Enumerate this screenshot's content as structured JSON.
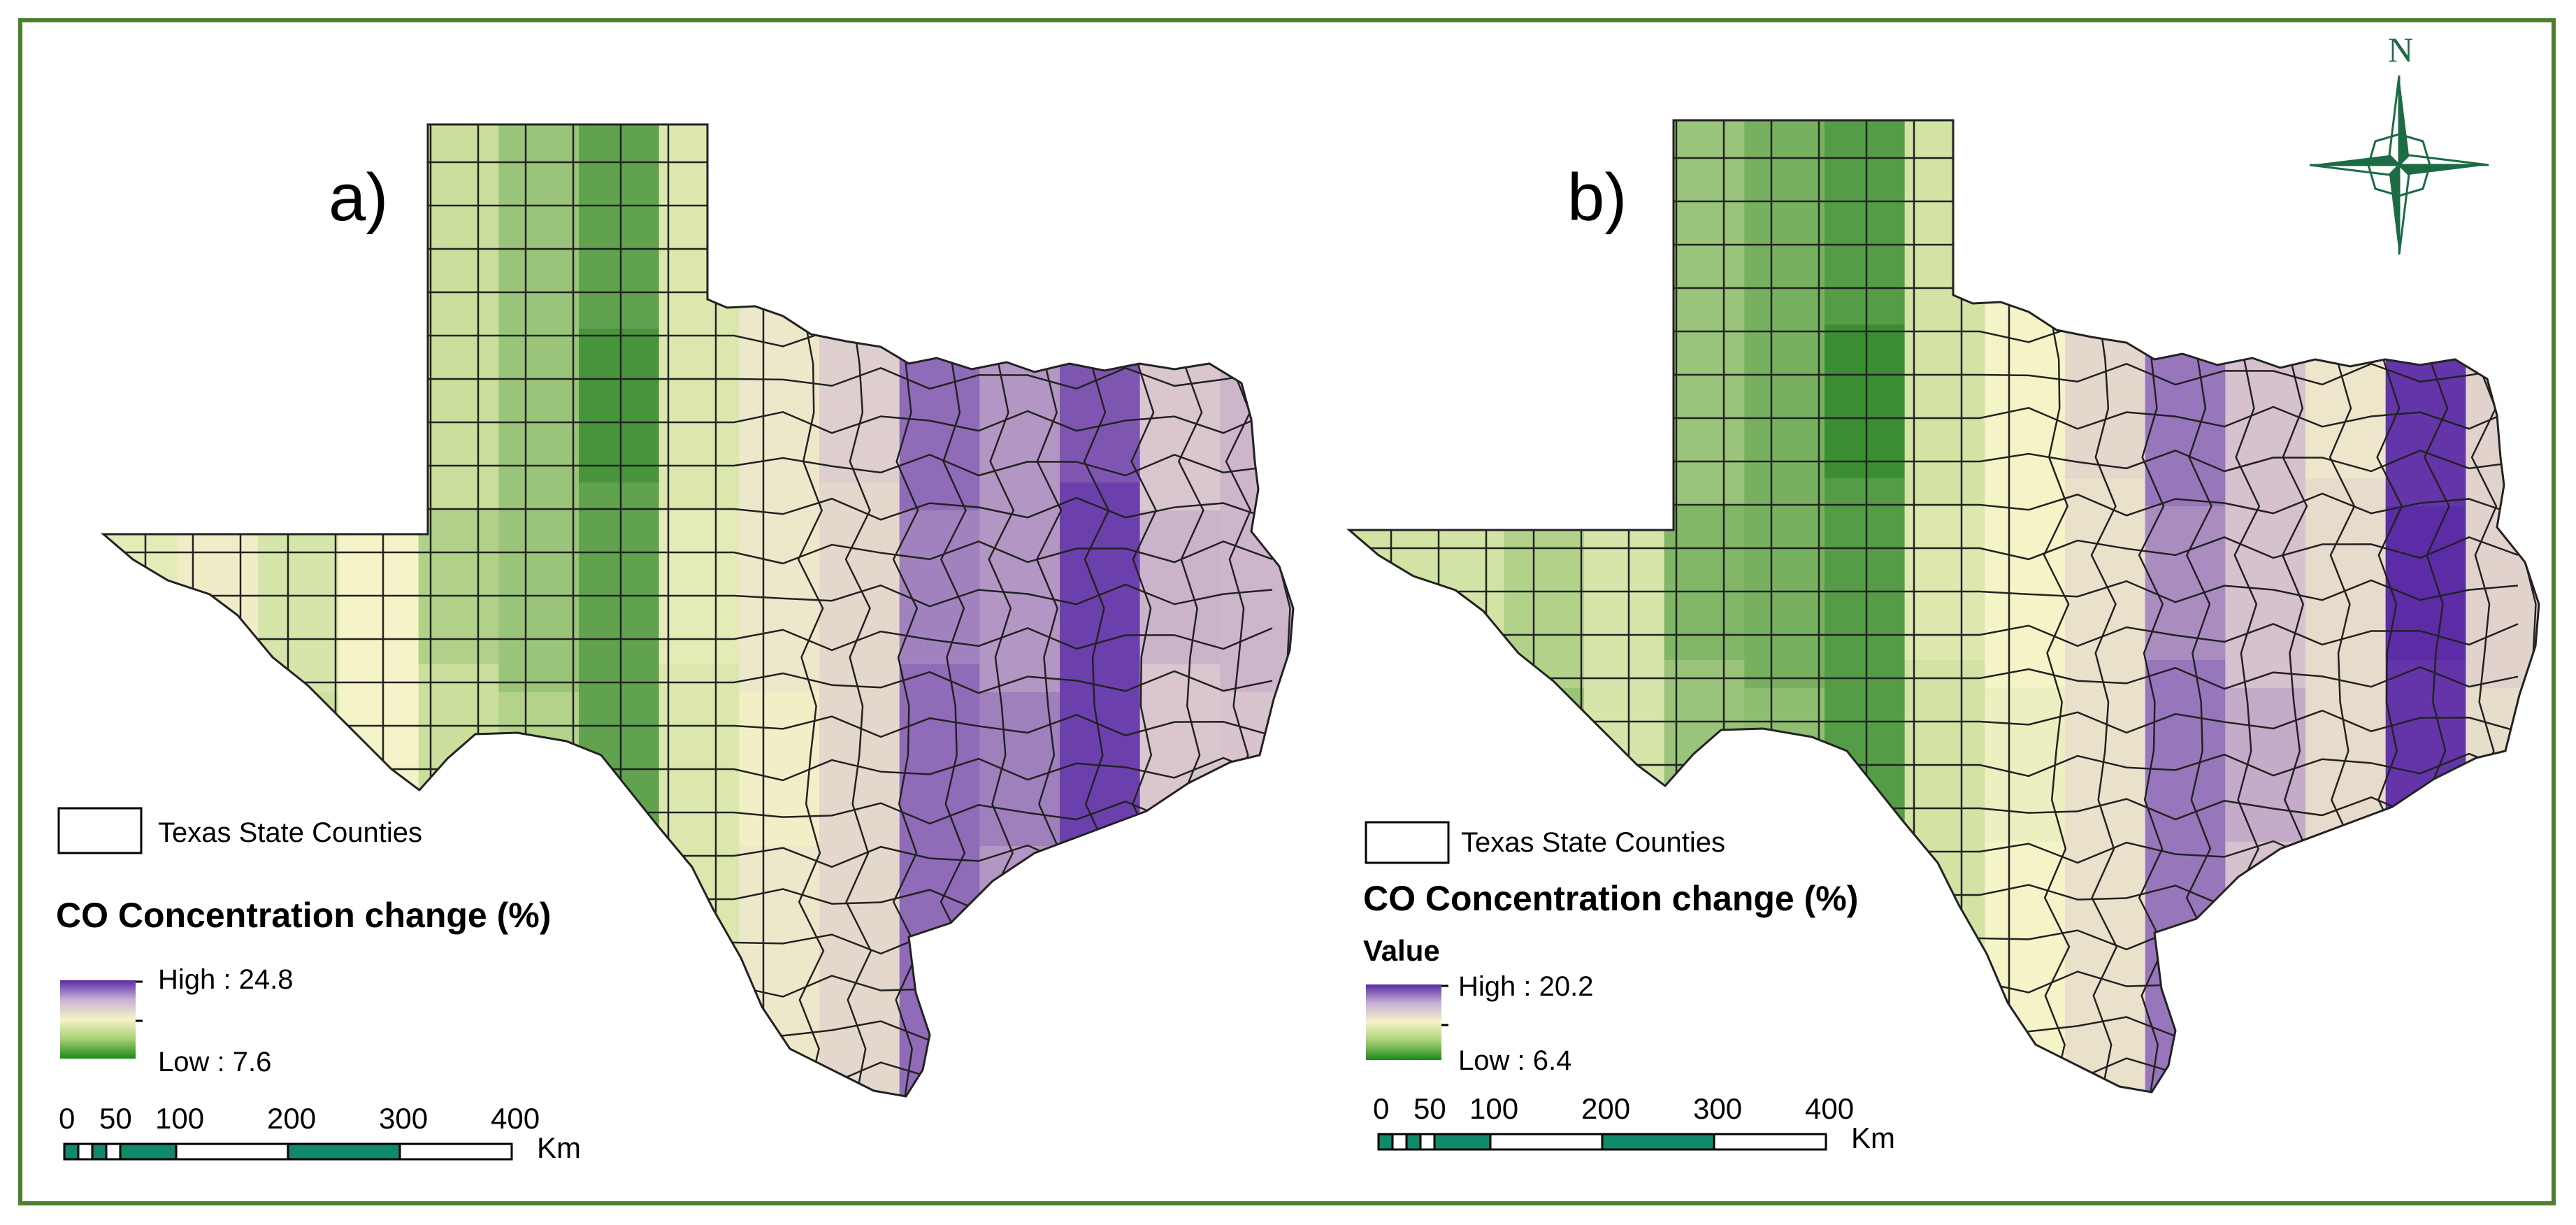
{
  "figure": {
    "panels": [
      {
        "label": "a)",
        "legend": {
          "boundary_label": "Texas State Counties",
          "title": "CO Concentration change (%)",
          "value_header": "",
          "high_label": "High : 24.8",
          "low_label": "Low : 7.6",
          "high_value": 24.8,
          "low_value": 7.6
        },
        "scale": {
          "ticks": [
            "0",
            "50",
            "100",
            "200",
            "300",
            "400"
          ],
          "unit": "Km"
        },
        "bands": [
          0.42,
          0.48,
          0.36,
          0.5,
          0.3,
          0.22,
          0.12,
          0.38,
          0.55,
          0.62,
          0.88,
          0.8,
          0.96,
          0.7,
          0.74
        ]
      },
      {
        "label": "b)",
        "legend": {
          "boundary_label": "Texas State Counties",
          "title": "CO Concentration change (%)",
          "value_header": "Value",
          "high_label": "High : 20.2",
          "low_label": "Low : 6.4",
          "high_value": 20.2,
          "low_value": 6.4
        },
        "scale": {
          "ticks": [
            "0",
            "50",
            "100",
            "200",
            "300",
            "400"
          ],
          "unit": "Km"
        },
        "bands": [
          0.34,
          0.3,
          0.26,
          0.36,
          0.22,
          0.16,
          0.1,
          0.34,
          0.5,
          0.58,
          0.86,
          0.72,
          0.6,
          0.98,
          0.64
        ]
      }
    ],
    "north_arrow": {
      "label": "N"
    },
    "colors": {
      "frame": "#4e7f2e",
      "ramp_low": "#1a7a1a",
      "ramp_mid_low": "#c9df9b",
      "ramp_mid": "#f5f3c8",
      "ramp_mid_high": "#d6c1cf",
      "ramp_high": "#5a2aa6",
      "scale_fill": "#0f8a6a",
      "north": "#1d6b45"
    }
  }
}
